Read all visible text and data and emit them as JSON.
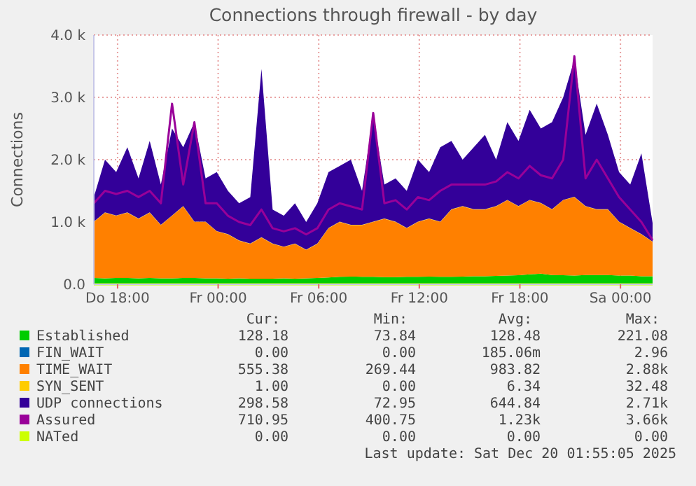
{
  "chart_data": {
    "type": "area",
    "stacked": true,
    "title": "Connections through firewall - by day",
    "ylabel": "Connections",
    "x": [
      "2025-12-18T16:35",
      "2025-12-18T17:15",
      "2025-12-18T17:55",
      "2025-12-18T18:35",
      "2025-12-18T19:15",
      "2025-12-18T19:55",
      "2025-12-18T20:35",
      "2025-12-18T21:15",
      "2025-12-18T21:55",
      "2025-12-18T22:35",
      "2025-12-18T23:15",
      "2025-12-18T23:55",
      "2025-12-19T00:35",
      "2025-12-19T01:15",
      "2025-12-19T01:55",
      "2025-12-19T02:35",
      "2025-12-19T03:15",
      "2025-12-19T03:55",
      "2025-12-19T04:35",
      "2025-12-19T05:15",
      "2025-12-19T05:55",
      "2025-12-19T06:35",
      "2025-12-19T07:15",
      "2025-12-19T07:55",
      "2025-12-19T08:35",
      "2025-12-19T09:15",
      "2025-12-19T09:55",
      "2025-12-19T10:35",
      "2025-12-19T11:15",
      "2025-12-19T11:55",
      "2025-12-19T12:35",
      "2025-12-19T13:15",
      "2025-12-19T13:55",
      "2025-12-19T14:35",
      "2025-12-19T15:15",
      "2025-12-19T15:55",
      "2025-12-19T16:35",
      "2025-12-19T17:15",
      "2025-12-19T17:55",
      "2025-12-19T18:35",
      "2025-12-19T19:15",
      "2025-12-19T19:55",
      "2025-12-19T20:35",
      "2025-12-19T21:15",
      "2025-12-19T21:55",
      "2025-12-19T22:35",
      "2025-12-19T23:15",
      "2025-12-19T23:55",
      "2025-12-20T00:35",
      "2025-12-20T01:15",
      "2025-12-20T01:55"
    ],
    "series": [
      {
        "name": "Established",
        "color": "#00cc00",
        "values": [
          100,
          95,
          100,
          100,
          95,
          100,
          95,
          95,
          100,
          100,
          95,
          95,
          90,
          95,
          90,
          90,
          90,
          95,
          90,
          95,
          100,
          110,
          120,
          125,
          120,
          120,
          115,
          115,
          120,
          120,
          125,
          120,
          120,
          125,
          130,
          130,
          135,
          140,
          145,
          160,
          170,
          150,
          145,
          140,
          150,
          150,
          150,
          140,
          140,
          130,
          128
        ]
      },
      {
        "name": "FIN_WAIT",
        "color": "#0066b3",
        "values": [
          null,
          null,
          null,
          null,
          null,
          null,
          null,
          null,
          null,
          null,
          null,
          null,
          null,
          null,
          null,
          null,
          null,
          null,
          null,
          null,
          null,
          null,
          null,
          null,
          null,
          null,
          null,
          null,
          null,
          null,
          null,
          null,
          null,
          null,
          null,
          null,
          null,
          null,
          null,
          null,
          null,
          null,
          null,
          null,
          null,
          null,
          null,
          null,
          null,
          null,
          null
        ]
      },
      {
        "name": "TIME_WAIT",
        "color": "#ff8000",
        "values": [
          900,
          1055,
          1000,
          1050,
          955,
          1050,
          855,
          1005,
          1150,
          900,
          905,
          755,
          710,
          605,
          560,
          660,
          560,
          505,
          560,
          455,
          550,
          790,
          880,
          825,
          830,
          880,
          935,
          885,
          780,
          880,
          925,
          880,
          1080,
          1125,
          1070,
          1070,
          1115,
          1210,
          1105,
          1190,
          1130,
          1050,
          1205,
          1260,
          1100,
          1050,
          1050,
          860,
          760,
          670,
          555
        ]
      },
      {
        "name": "SYN_SENT",
        "color": "#ffcc00",
        "values": [
          5,
          5,
          5,
          5,
          5,
          5,
          5,
          5,
          5,
          5,
          5,
          5,
          5,
          5,
          5,
          5,
          5,
          5,
          5,
          5,
          5,
          5,
          5,
          5,
          5,
          5,
          5,
          5,
          5,
          5,
          5,
          5,
          5,
          5,
          5,
          5,
          5,
          5,
          5,
          5,
          5,
          5,
          5,
          5,
          5,
          5,
          5,
          5,
          5,
          5,
          1
        ]
      },
      {
        "name": "UDP connections",
        "color": "#330099",
        "values": [
          395,
          845,
          695,
          1045,
          645,
          1145,
          645,
          1395,
          945,
          1595,
          695,
          945,
          695,
          595,
          745,
          2700,
          545,
          495,
          645,
          445,
          645,
          895,
          895,
          1045,
          545,
          1695,
          545,
          695,
          595,
          995,
          745,
          1195,
          1095,
          745,
          995,
          1195,
          745,
          1245,
          1045,
          1445,
          1195,
          1395,
          1645,
          2195,
          1145,
          1695,
          1195,
          795,
          695,
          1295,
          299
        ]
      },
      {
        "name": "Assured",
        "color": "#990099",
        "type": "line",
        "values": [
          1300,
          1500,
          1450,
          1500,
          1400,
          1500,
          1300,
          2900,
          1600,
          2600,
          1300,
          1300,
          1100,
          1000,
          950,
          1200,
          900,
          850,
          900,
          800,
          900,
          1200,
          1300,
          1250,
          1200,
          2750,
          1300,
          1350,
          1200,
          1400,
          1350,
          1500,
          1600,
          1600,
          1600,
          1600,
          1650,
          1800,
          1700,
          1900,
          1750,
          1700,
          2000,
          3660,
          1700,
          2000,
          1700,
          1400,
          1200,
          1000,
          711
        ]
      },
      {
        "name": "NATed",
        "color": "#ccff00",
        "type": "line",
        "values": [
          0,
          0,
          0,
          0,
          0,
          0,
          0,
          0,
          0,
          0,
          0,
          0,
          0,
          0,
          0,
          0,
          0,
          0,
          0,
          0,
          0,
          0,
          0,
          0,
          0,
          0,
          0,
          0,
          0,
          0,
          0,
          0,
          0,
          0,
          0,
          0,
          0,
          0,
          0,
          0,
          0,
          0,
          0,
          0,
          0,
          0,
          0,
          0,
          0,
          0,
          0
        ]
      }
    ],
    "xlim": [
      "2025-12-18T16:35",
      "2025-12-20T01:55"
    ],
    "xticks": [
      {
        "value": "2025-12-18T18:00",
        "label": "Do 18:00"
      },
      {
        "value": "2025-12-19T00:00",
        "label": "Fr 00:00"
      },
      {
        "value": "2025-12-19T06:00",
        "label": "Fr 06:00"
      },
      {
        "value": "2025-12-19T12:00",
        "label": "Fr 12:00"
      },
      {
        "value": "2025-12-19T18:00",
        "label": "Fr 18:00"
      },
      {
        "value": "2025-12-20T00:00",
        "label": "Sa 00:00"
      }
    ],
    "ylim": [
      0,
      4000
    ],
    "yticks": [
      {
        "value": 0,
        "label": "0.0"
      },
      {
        "value": 1000,
        "label": "1.0 k"
      },
      {
        "value": 2000,
        "label": "2.0 k"
      },
      {
        "value": 3000,
        "label": "3.0 k"
      },
      {
        "value": 4000,
        "label": "4.0 k"
      }
    ],
    "grid": true,
    "legend": "bottom",
    "annotations": [
      "Cur:",
      "Min:",
      "Avg:",
      "Max:",
      "128.18",
      "73.84",
      "128.48",
      "221.08",
      "0.00",
      "0.00",
      "185.06m",
      "2.96",
      "555.38",
      "269.44",
      "983.82",
      "2.88k",
      "1.00",
      "0.00",
      "6.34",
      "32.48",
      "298.58",
      "72.95",
      "644.84",
      "2.71k",
      "710.95",
      "400.75",
      "1.23k",
      "3.66k",
      "0.00",
      "0.00",
      "0.00",
      "0.00",
      "Last update: Sat Dec 20 01:55:05 2025"
    ]
  }
}
